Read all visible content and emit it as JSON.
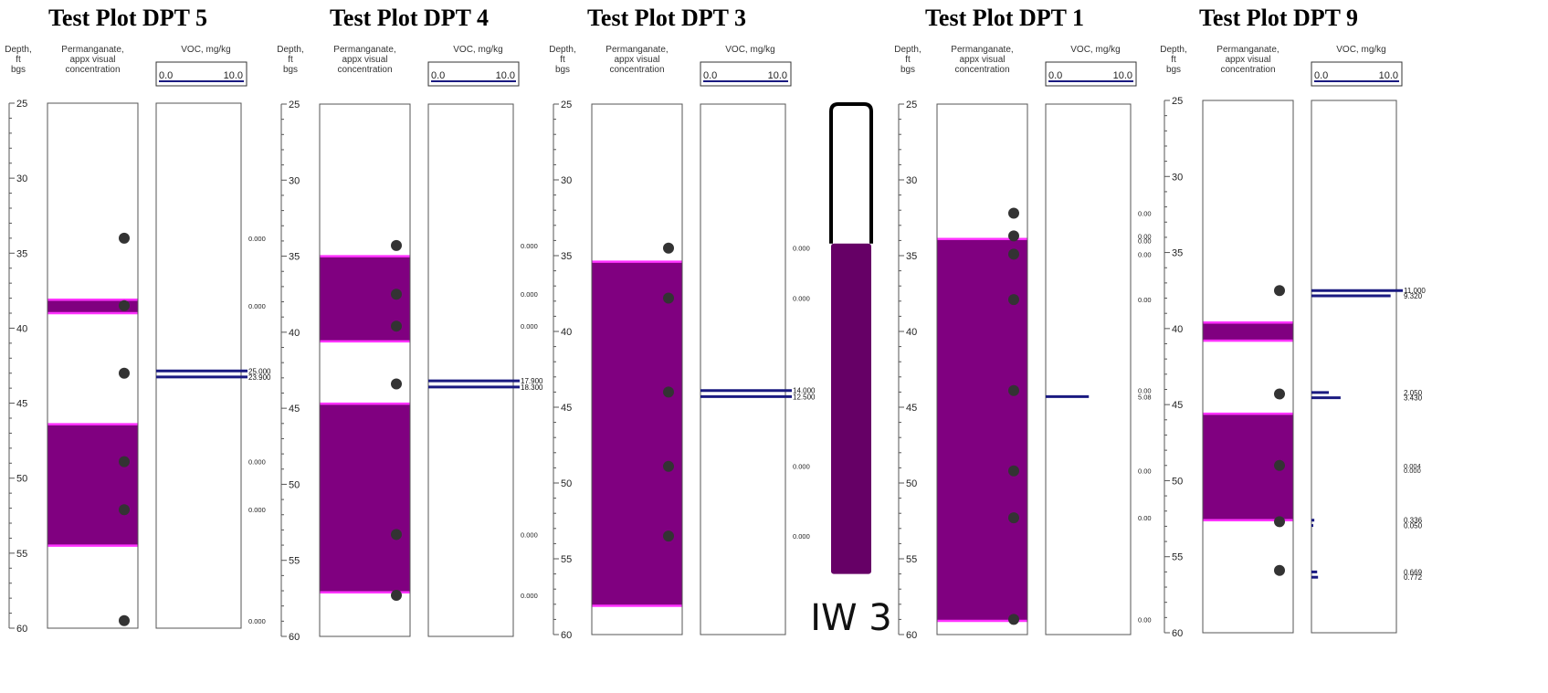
{
  "colors": {
    "permanganate_fill": "#800080",
    "permanganate_edge": "#ff33ff",
    "voc_bar": "#1a1a80",
    "sample_dot": "#333333",
    "iw_fill": "#660066"
  },
  "column_headers": {
    "depth": [
      "Depth,",
      "ft",
      "bgs"
    ],
    "permanganate": [
      "Permanganate,",
      "appx visual",
      "concentration"
    ],
    "voc": "VOC, mg/kg",
    "voc_scale_min": "0.0",
    "voc_scale_max": "10.0"
  },
  "iw": {
    "label": "IW 3",
    "top_depth": 34.2,
    "bottom_depth": 56.0
  },
  "chart_data": [
    {
      "type": "well-log",
      "title": "Test Plot DPT 5",
      "ylim": [
        25,
        60
      ],
      "yticks": [
        25,
        30,
        35,
        40,
        45,
        50,
        55,
        60
      ],
      "voc_range": [
        0,
        10
      ],
      "permanganate_intervals": [
        [
          38.1,
          39.0
        ],
        [
          46.4,
          54.5
        ]
      ],
      "sample_depths": [
        34.0,
        38.5,
        43.0,
        48.9,
        52.1,
        59.5
      ],
      "voc_labels": [
        {
          "depth": 34.0,
          "text": "0.000"
        },
        {
          "depth": 38.5,
          "text": "0.000"
        },
        {
          "depth": 48.9,
          "text": "0.000"
        },
        {
          "depth": 52.1,
          "text": "0.000"
        },
        {
          "depth": 59.5,
          "text": "0.000"
        }
      ],
      "voc_bars": [
        {
          "depth": 42.85,
          "value": 25.0,
          "text": "25.000"
        },
        {
          "depth": 43.25,
          "value": 23.9,
          "text": "23.900"
        }
      ]
    },
    {
      "type": "well-log",
      "title": "Test Plot DPT 4",
      "ylim": [
        25,
        60
      ],
      "yticks": [
        25,
        30,
        35,
        40,
        45,
        50,
        55,
        60
      ],
      "voc_range": [
        0,
        10
      ],
      "permanganate_intervals": [
        [
          35.0,
          40.6
        ],
        [
          44.7,
          57.1
        ]
      ],
      "sample_depths": [
        34.3,
        37.5,
        39.6,
        43.4,
        53.3,
        57.3
      ],
      "voc_labels": [
        {
          "depth": 34.3,
          "text": "0.000"
        },
        {
          "depth": 37.5,
          "text": "0.000"
        },
        {
          "depth": 39.6,
          "text": "0.000"
        },
        {
          "depth": 53.3,
          "text": "0.000"
        },
        {
          "depth": 57.3,
          "text": "0.000"
        }
      ],
      "voc_bars": [
        {
          "depth": 43.2,
          "value": 17.9,
          "text": "17.900"
        },
        {
          "depth": 43.6,
          "value": 18.3,
          "text": "18.300"
        }
      ]
    },
    {
      "type": "well-log",
      "title": "Test Plot DPT 3",
      "ylim": [
        25,
        60
      ],
      "yticks": [
        25,
        30,
        35,
        40,
        45,
        50,
        55,
        60
      ],
      "voc_range": [
        0,
        10
      ],
      "permanganate_intervals": [
        [
          35.4,
          58.1
        ]
      ],
      "sample_depths": [
        34.5,
        37.8,
        44.0,
        48.9,
        53.5
      ],
      "voc_labels": [
        {
          "depth": 34.5,
          "text": "0.000"
        },
        {
          "depth": 37.8,
          "text": "0.000"
        },
        {
          "depth": 48.9,
          "text": "0.000"
        },
        {
          "depth": 53.5,
          "text": "0.000"
        }
      ],
      "voc_bars": [
        {
          "depth": 43.9,
          "value": 14.0,
          "text": "14.000"
        },
        {
          "depth": 44.3,
          "value": 12.5,
          "text": "12.500"
        }
      ]
    },
    {
      "type": "well-log",
      "title": "Test Plot DPT 1",
      "ylim": [
        25,
        60
      ],
      "yticks": [
        25,
        30,
        35,
        40,
        45,
        50,
        55,
        60
      ],
      "voc_range": [
        0,
        10
      ],
      "permanganate_intervals": [
        [
          33.9,
          59.1
        ]
      ],
      "sample_depths": [
        32.2,
        33.7,
        34.9,
        37.9,
        43.9,
        49.2,
        52.3,
        59.0
      ],
      "voc_labels": [
        {
          "depth": 32.2,
          "text": "0.00"
        },
        {
          "depth": 33.7,
          "text": "0.00"
        },
        {
          "depth": 34.0,
          "text": "0.00"
        },
        {
          "depth": 34.9,
          "text": "0.00"
        },
        {
          "depth": 37.9,
          "text": "0.00"
        },
        {
          "depth": 43.9,
          "text": "0.00"
        },
        {
          "depth": 44.3,
          "text": "5.08"
        },
        {
          "depth": 49.2,
          "text": "0.00"
        },
        {
          "depth": 52.3,
          "text": "0.00"
        },
        {
          "depth": 59.0,
          "text": "0.00"
        }
      ],
      "voc_bars": [
        {
          "depth": 44.3,
          "value": 5.08,
          "text": ""
        }
      ]
    },
    {
      "type": "well-log",
      "title": "Test Plot DPT 9",
      "ylim": [
        25,
        60
      ],
      "yticks": [
        25,
        30,
        35,
        40,
        45,
        50,
        55,
        60
      ],
      "voc_range": [
        0,
        10
      ],
      "permanganate_intervals": [
        [
          39.6,
          40.8
        ],
        [
          45.6,
          52.6
        ]
      ],
      "sample_depths": [
        37.5,
        44.3,
        49.0,
        52.7,
        55.9
      ],
      "voc_labels": [
        {
          "depth": 49.0,
          "text": "0.004"
        },
        {
          "depth": 49.3,
          "text": "0.000"
        }
      ],
      "voc_bars": [
        {
          "depth": 37.5,
          "value": 11.0,
          "text": "11.000"
        },
        {
          "depth": 37.85,
          "value": 9.32,
          "text": "9.320"
        },
        {
          "depth": 44.2,
          "value": 2.05,
          "text": "2.050"
        },
        {
          "depth": 44.55,
          "value": 3.43,
          "text": "3.430"
        },
        {
          "depth": 52.6,
          "value": 0.336,
          "text": "0.336"
        },
        {
          "depth": 52.95,
          "value": 0.05,
          "text": "0.050"
        },
        {
          "depth": 56.0,
          "value": 0.669,
          "text": "0.669"
        },
        {
          "depth": 56.35,
          "value": 0.772,
          "text": "0.772"
        }
      ]
    }
  ]
}
